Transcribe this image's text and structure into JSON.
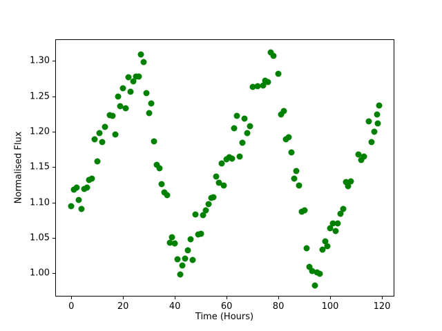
{
  "chart_data": {
    "type": "scatter",
    "title": "",
    "xlabel": "Time (Hours)",
    "ylabel": "Normalised Flux",
    "legend": null,
    "grid": false,
    "marker_color": "#008000",
    "marker_size_px": 9,
    "xlim": [
      -6.2,
      124.8
    ],
    "ylim": [
      0.967,
      1.3305
    ],
    "xticks": [
      {
        "v": 0,
        "label": "0"
      },
      {
        "v": 20,
        "label": "20"
      },
      {
        "v": 40,
        "label": "40"
      },
      {
        "v": 60,
        "label": "60"
      },
      {
        "v": 80,
        "label": "80"
      },
      {
        "v": 100,
        "label": "100"
      },
      {
        "v": 120,
        "label": "120"
      }
    ],
    "yticks": [
      {
        "v": 1.0,
        "label": "1.00"
      },
      {
        "v": 1.05,
        "label": "1.05"
      },
      {
        "v": 1.1,
        "label": "1.10"
      },
      {
        "v": 1.15,
        "label": "1.15"
      },
      {
        "v": 1.2,
        "label": "1.20"
      },
      {
        "v": 1.25,
        "label": "1.25"
      },
      {
        "v": 1.3,
        "label": "1.30"
      }
    ],
    "points": [
      [
        0,
        1.095
      ],
      [
        1,
        1.118
      ],
      [
        2,
        1.121
      ],
      [
        3,
        1.103
      ],
      [
        4,
        1.091
      ],
      [
        5,
        1.119
      ],
      [
        6,
        1.121
      ],
      [
        7,
        1.132
      ],
      [
        8,
        1.134
      ],
      [
        9,
        1.189
      ],
      [
        10,
        1.158
      ],
      [
        11,
        1.198
      ],
      [
        12,
        1.185
      ],
      [
        13,
        1.207
      ],
      [
        15,
        1.223
      ],
      [
        16,
        1.222
      ],
      [
        17,
        1.196
      ],
      [
        18,
        1.25
      ],
      [
        19,
        1.236
      ],
      [
        20,
        1.261
      ],
      [
        21,
        1.233
      ],
      [
        22,
        1.277
      ],
      [
        23,
        1.256
      ],
      [
        24,
        1.271
      ],
      [
        25,
        1.278
      ],
      [
        26,
        1.278
      ],
      [
        27,
        1.309
      ],
      [
        28,
        1.298
      ],
      [
        29,
        1.254
      ],
      [
        30,
        1.226
      ],
      [
        31,
        1.24
      ],
      [
        32,
        1.186
      ],
      [
        33,
        1.153
      ],
      [
        34,
        1.148
      ],
      [
        35,
        1.126
      ],
      [
        36,
        1.114
      ],
      [
        37,
        1.11
      ],
      [
        38,
        1.043
      ],
      [
        39,
        1.051
      ],
      [
        40,
        1.042
      ],
      [
        41,
        1.02
      ],
      [
        42,
        0.998
      ],
      [
        43,
        1.011
      ],
      [
        44,
        1.021
      ],
      [
        45,
        1.032
      ],
      [
        46,
        1.048
      ],
      [
        47,
        1.019
      ],
      [
        48,
        1.083
      ],
      [
        49,
        1.055
      ],
      [
        50,
        1.056
      ],
      [
        51,
        1.082
      ],
      [
        52,
        1.089
      ],
      [
        53,
        1.098
      ],
      [
        54,
        1.106
      ],
      [
        55,
        1.107
      ],
      [
        56,
        1.137
      ],
      [
        57,
        1.128
      ],
      [
        58,
        1.155
      ],
      [
        59,
        1.124
      ],
      [
        60,
        1.161
      ],
      [
        61,
        1.164
      ],
      [
        62,
        1.162
      ],
      [
        63,
        1.205
      ],
      [
        64,
        1.222
      ],
      [
        65,
        1.165
      ],
      [
        66,
        1.184
      ],
      [
        67,
        1.218
      ],
      [
        68,
        1.198
      ],
      [
        69,
        1.208
      ],
      [
        70,
        1.263
      ],
      [
        72,
        1.264
      ],
      [
        74,
        1.265
      ],
      [
        75,
        1.272
      ],
      [
        76,
        1.27
      ],
      [
        77,
        1.312
      ],
      [
        78,
        1.307
      ],
      [
        80,
        1.282
      ],
      [
        81,
        1.224
      ],
      [
        82,
        1.229
      ],
      [
        83,
        1.189
      ],
      [
        84,
        1.192
      ],
      [
        85,
        1.171
      ],
      [
        86,
        1.134
      ],
      [
        87,
        1.144
      ],
      [
        88,
        1.124
      ],
      [
        89,
        1.087
      ],
      [
        90,
        1.089
      ],
      [
        91,
        1.035
      ],
      [
        92,
        1.009
      ],
      [
        93,
        1.003
      ],
      [
        94,
        0.983
      ],
      [
        95,
        1.001
      ],
      [
        96,
        0.999
      ],
      [
        97,
        1.033
      ],
      [
        98,
        1.045
      ],
      [
        99,
        1.038
      ],
      [
        100,
        1.063
      ],
      [
        101,
        1.07
      ],
      [
        102,
        1.06
      ],
      [
        103,
        1.07
      ],
      [
        104,
        1.084
      ],
      [
        105,
        1.091
      ],
      [
        106,
        1.129
      ],
      [
        107,
        1.123
      ],
      [
        108,
        1.13
      ],
      [
        111,
        1.168
      ],
      [
        112,
        1.16
      ],
      [
        113,
        1.165
      ],
      [
        115,
        1.215
      ],
      [
        116,
        1.185
      ],
      [
        117,
        1.2
      ],
      [
        118,
        1.224
      ],
      [
        118.5,
        1.212
      ],
      [
        119,
        1.237
      ]
    ]
  }
}
